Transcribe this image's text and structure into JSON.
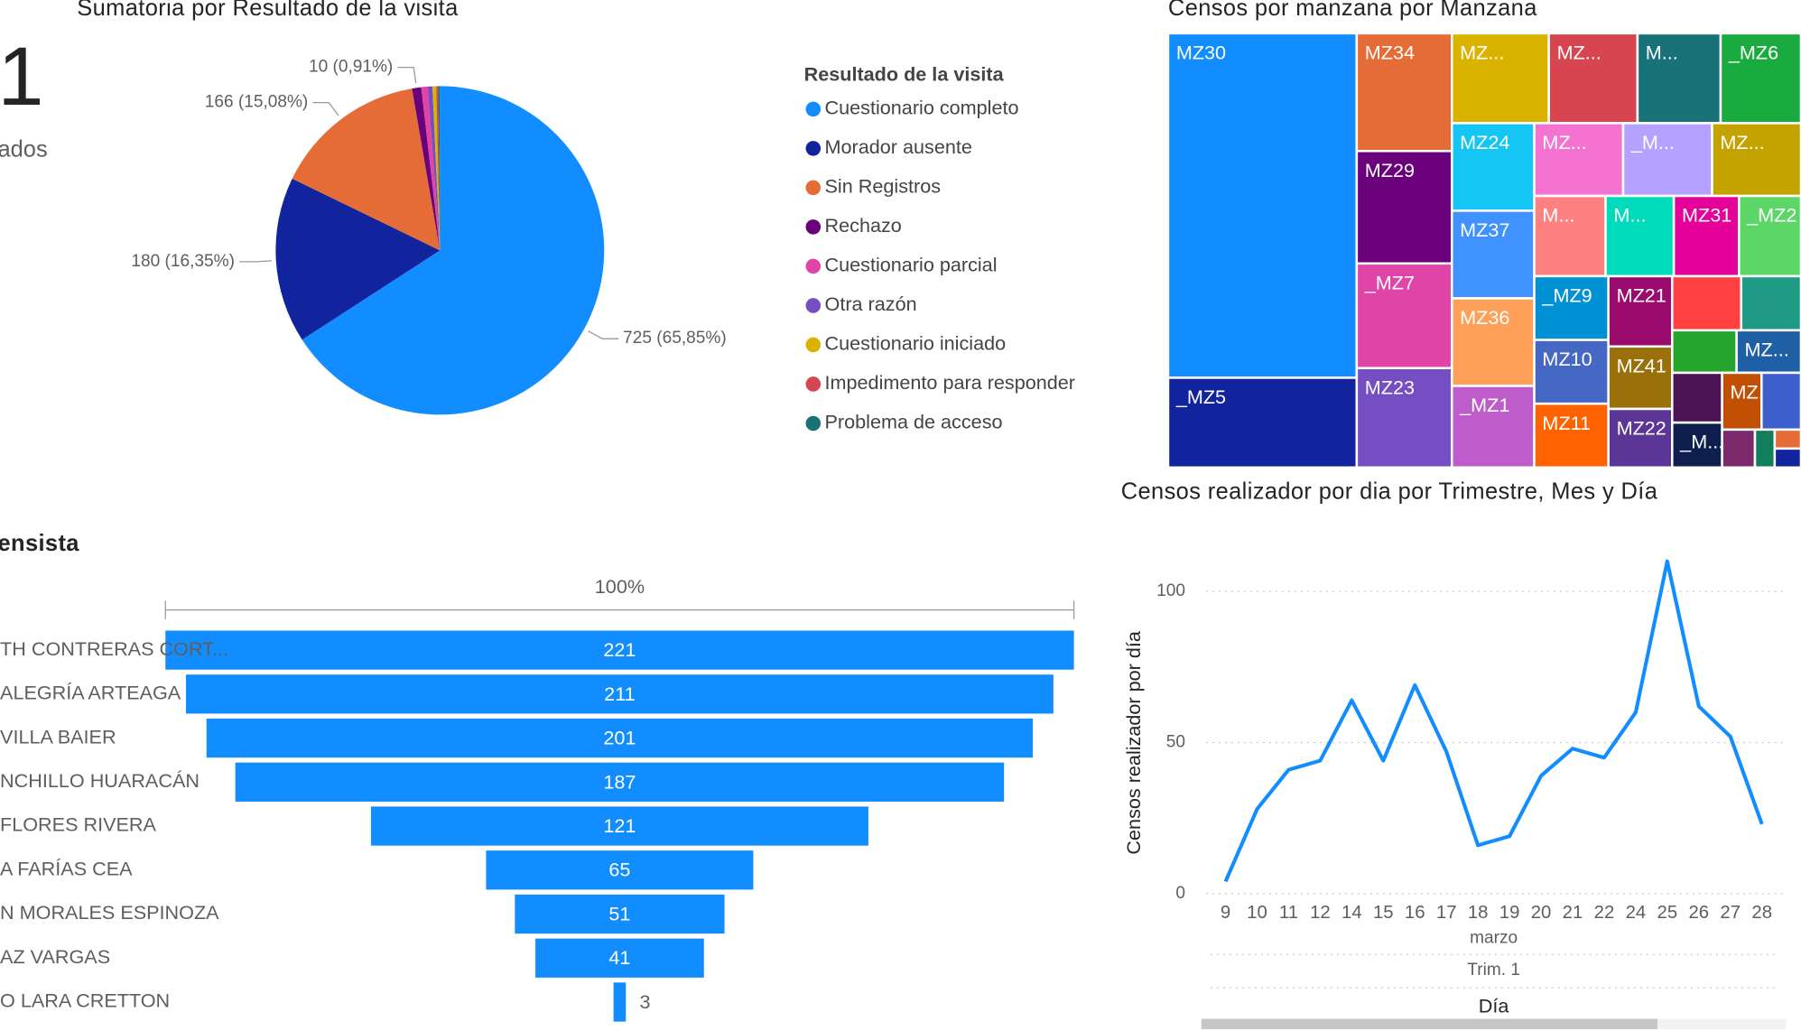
{
  "card": {
    "value": "1",
    "label": "ados"
  },
  "chart_data": [
    {
      "type": "pie",
      "title": "Sumatoria por Resultado de la visita",
      "legend_title": "Resultado de la visita",
      "legend": "right",
      "categories": [
        "Cuestionario completo",
        "Morador ausente",
        "Sin Registros",
        "Rechazo",
        "Cuestionario parcial",
        "Otra razón",
        "Cuestionario iniciado",
        "Impedimento para responder",
        "Problema de acceso"
      ],
      "values": [
        725,
        180,
        166,
        10,
        7,
        5,
        4,
        2,
        2
      ],
      "value_labels": [
        "725 (65,85%)",
        "180 (16,35%)",
        "166 (15,08%)",
        "10 (0,91%)",
        null,
        null,
        null,
        null,
        null
      ],
      "colors": [
        "#118DFF",
        "#12239E",
        "#E66C37",
        "#6B007B",
        "#E044A7",
        "#744EC2",
        "#D9B300",
        "#D64550",
        "#197278"
      ]
    },
    {
      "type": "treemap",
      "title": "Censos por manzana por Manzana",
      "categories": [
        "MZ30",
        "_MZ5",
        "MZ34",
        "MZ29",
        "_MZ7",
        "MZ23",
        "MZ...",
        "MZ...",
        "M...",
        "_MZ6",
        "MZ24",
        "MZ37",
        "MZ36",
        "_MZ1",
        "MZ...",
        "_M...",
        "MZ...",
        "M...",
        "M...",
        "MZ31",
        "_MZ2",
        "_MZ9",
        "MZ10",
        "MZ11",
        "MZ21",
        "MZ41",
        "MZ22",
        null,
        null,
        null,
        "MZ...",
        null,
        "_M...",
        "MZ...",
        null,
        null,
        null,
        null,
        null
      ],
      "values": [
        261,
        68,
        45,
        43,
        40,
        38,
        35,
        32,
        30,
        29,
        29,
        29,
        29,
        27,
        26,
        26,
        26,
        23,
        22,
        21,
        20,
        19,
        19,
        19,
        18,
        16,
        15,
        15,
        13,
        11,
        11,
        10,
        9,
        9,
        9,
        5,
        3,
        2,
        2
      ],
      "colors": [
        "#118DFF",
        "#12239E",
        "#E66C37",
        "#6B007B",
        "#E044A7",
        "#744EC2",
        "#D9B300",
        "#D64550",
        "#197278",
        "#1AAB40",
        "#15C6F4",
        "#4092FF",
        "#FFA058",
        "#BE5DC9",
        "#F472D0",
        "#B5A1FF",
        "#C4A200",
        "#FF8080",
        "#00DBBC",
        "#E5009A",
        "#5BD667",
        "#0091D5",
        "#4668C5",
        "#FF6300",
        "#9B0B6E",
        "#99700A",
        "#5C3696",
        "#FF4141",
        "#1F9A85",
        "#26A52C",
        "#1F5FA6",
        "#4A1352",
        "#0D1E4F",
        "#C15004",
        "#3C5FCB",
        "#7D2A6C",
        "#107F5A",
        "#E66C37",
        "#12239E"
      ]
    },
    {
      "type": "funnel",
      "title": "ensista",
      "top_label": "100%",
      "categories": [
        "TH CONTRERAS CORT...",
        "ALEGRÍA ARTEAGA",
        "VILLA BAIER",
        "NCHILLO HUARACÁN",
        "FLORES RIVERA",
        "A FARÍAS CEA",
        "N MORALES ESPINOZA",
        "AZ VARGAS",
        "O LARA CRETTON"
      ],
      "values": [
        221,
        211,
        201,
        187,
        121,
        65,
        51,
        41,
        3
      ],
      "color": "#118DFF"
    },
    {
      "type": "line",
      "title": "Censos realizador por dia por Trimestre, Mes y Día",
      "x_label": "Día",
      "y_label": "Censos realizador por día",
      "x_hierarchy": [
        "marzo",
        "Trim. 1"
      ],
      "categories": [
        "9",
        "10",
        "11",
        "12",
        "14",
        "15",
        "16",
        "17",
        "18",
        "19",
        "20",
        "21",
        "22",
        "24",
        "25",
        "26",
        "27",
        "28"
      ],
      "values": [
        4,
        28,
        41,
        44,
        64,
        44,
        69,
        47,
        16,
        19,
        39,
        48,
        45,
        60,
        110,
        62,
        52,
        23
      ],
      "color": "#118DFF",
      "ylim": [
        0,
        115
      ],
      "yticks": [
        0,
        50,
        100
      ],
      "grid": true
    }
  ]
}
